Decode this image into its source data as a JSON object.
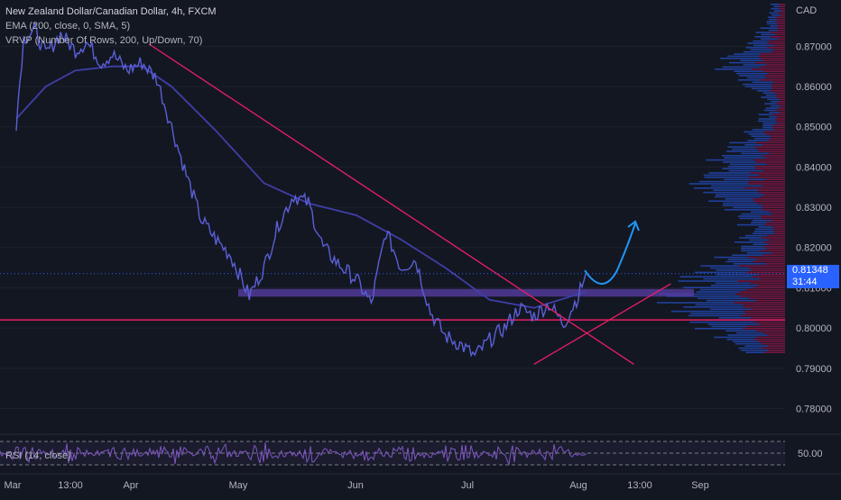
{
  "legend": {
    "symbol": "New Zealand Dollar/Canadian Dollar, 4h, FXCM",
    "ema": "EMA (200, close, 0, SMA, 5)",
    "vrvp": "VRVP (Number Of Rows, 200, Up/Down, 70)"
  },
  "price_tag": {
    "price": "0.81348",
    "countdown": "31:44"
  },
  "rsi_label": "RSI (14, close)",
  "colors": {
    "background": "#131722",
    "price_line": "#5b5fd6",
    "ema_line": "#3f3fa8",
    "trendline": "#e91e63",
    "arrow": "#2196f3",
    "zone": "#5b3fa8",
    "vrvp_up": "#2962ff",
    "vrvp_down": "#c2185b"
  },
  "chart_data": [
    {
      "type": "line",
      "title": "New Zealand Dollar/Canadian Dollar, 4h, FXCM",
      "currency": "CAD",
      "x_tick_labels": [
        "Mar",
        "13:00",
        "Apr",
        "May",
        "Jun",
        "Jul",
        "Aug",
        "13:00",
        "Sep"
      ],
      "y_tick_labels": [
        "0.87000",
        "0.86000",
        "0.85000",
        "0.84000",
        "0.83000",
        "0.82000",
        "0.81000",
        "0.80000",
        "0.79000",
        "0.78000"
      ],
      "ylim": [
        0.7745,
        0.8815
      ],
      "series": [
        {
          "name": "Close",
          "x": [
            "Mar 1",
            "Mar 3",
            "Mar 6",
            "Mar 9",
            "Mar 13",
            "Mar 17",
            "Mar 20",
            "Mar 24",
            "Mar 27",
            "Mar 31",
            "Apr 4",
            "Apr 8",
            "Apr 12",
            "Apr 16",
            "Apr 20",
            "Apr 24",
            "Apr 28",
            "May 3",
            "May 7",
            "May 11",
            "May 15",
            "May 19",
            "May 23",
            "May 27",
            "Jun 1",
            "Jun 5",
            "Jun 9",
            "Jun 13",
            "Jun 17",
            "Jun 21",
            "Jun 25",
            "Jun 29",
            "Jul 3",
            "Jul 7",
            "Jul 11",
            "Jul 15",
            "Jul 19",
            "Jul 23",
            "Jul 27",
            "Jul 31",
            "Aug 2"
          ],
          "y": [
            0.851,
            0.872,
            0.874,
            0.868,
            0.873,
            0.869,
            0.871,
            0.866,
            0.868,
            0.864,
            0.866,
            0.862,
            0.85,
            0.838,
            0.827,
            0.822,
            0.818,
            0.808,
            0.815,
            0.826,
            0.833,
            0.831,
            0.82,
            0.816,
            0.812,
            0.806,
            0.824,
            0.815,
            0.817,
            0.804,
            0.798,
            0.796,
            0.793,
            0.797,
            0.8,
            0.805,
            0.803,
            0.806,
            0.801,
            0.808,
            0.8135
          ]
        },
        {
          "name": "EMA (200, close, 0, SMA, 5)",
          "x": [
            "Mar 1",
            "Mar 9",
            "Mar 17",
            "Mar 27",
            "Apr 4",
            "Apr 12",
            "Apr 24",
            "May 7",
            "May 19",
            "Jun 1",
            "Jun 13",
            "Jun 25",
            "Jul 7",
            "Jul 19",
            "Aug 2"
          ],
          "y": [
            0.852,
            0.86,
            0.864,
            0.865,
            0.865,
            0.86,
            0.849,
            0.836,
            0.831,
            0.828,
            0.822,
            0.815,
            0.807,
            0.805,
            0.809
          ]
        }
      ],
      "annotations": {
        "descending_trendline": {
          "from": [
            "Apr 6",
            0.8705
          ],
          "to": [
            "Aug 15",
            0.791
          ]
        },
        "rising_trendline": {
          "from": [
            "Jul 19",
            0.791
          ],
          "to": [
            "Aug 25",
            0.811
          ]
        },
        "horizontal_support": 0.802,
        "resistance_zone": [
          0.8078,
          0.8097
        ],
        "projection_arrow": "upward"
      },
      "volume_profile": {
        "type": "horizontal-bar",
        "note_up_down": [
          "up",
          "down"
        ]
      }
    },
    {
      "type": "line",
      "title": "RSI (14, close)",
      "y_tick_labels": [
        "50.00"
      ],
      "levels": [
        70,
        50,
        30
      ]
    }
  ]
}
